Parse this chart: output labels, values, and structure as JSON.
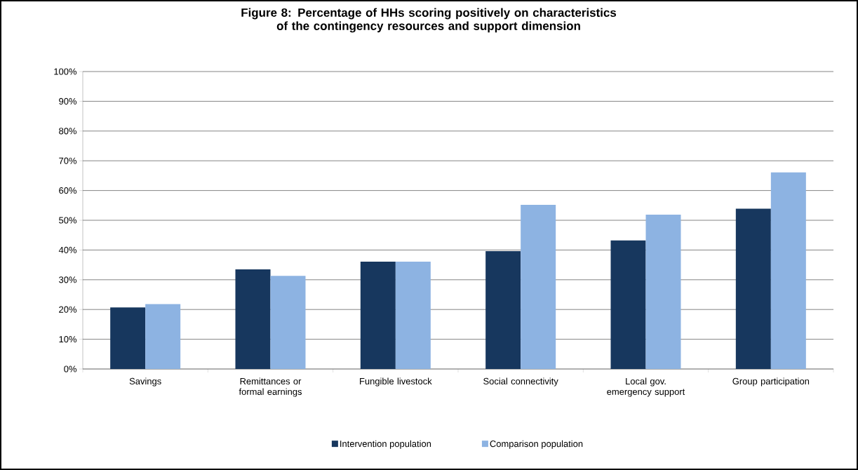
{
  "chart_data": {
    "type": "bar",
    "title": "Figure 8:  Percentage of HHs scoring positively on characteristics of the contingency resources and support dimension",
    "categories": [
      "Savings",
      "Remittances or formal earnings",
      "Fungible livestock",
      "Social connectivity",
      "Local gov. emergency support",
      "Group participation"
    ],
    "series": [
      {
        "name": "Intervention population",
        "color": "#17375e",
        "values": [
          20.7,
          33.5,
          36.1,
          39.6,
          43.2,
          53.9
        ]
      },
      {
        "name": "Comparison population",
        "color": "#8db3e2",
        "values": [
          21.8,
          31.3,
          36.1,
          55.2,
          51.9,
          66.1
        ]
      }
    ],
    "ylim": [
      0,
      100
    ],
    "yticks": [
      {
        "value": 0,
        "label": "0%"
      },
      {
        "value": 10,
        "label": "10%"
      },
      {
        "value": 20,
        "label": "20%"
      },
      {
        "value": 30,
        "label": "30%"
      },
      {
        "value": 40,
        "label": "40%"
      },
      {
        "value": 50,
        "label": "50%"
      },
      {
        "value": 60,
        "label": "60%"
      },
      {
        "value": 70,
        "label": "70%"
      },
      {
        "value": 80,
        "label": "80%"
      },
      {
        "value": 90,
        "label": "90%"
      },
      {
        "value": 100,
        "label": "100%"
      }
    ],
    "grid": "y",
    "legend": "bottom"
  }
}
